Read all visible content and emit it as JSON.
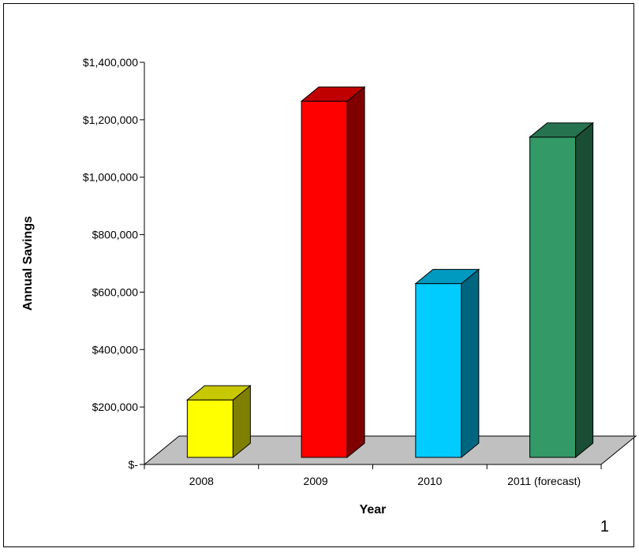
{
  "chart_data": {
    "type": "bar",
    "title": "",
    "xlabel": "Year",
    "ylabel": "Annual Savings",
    "categories": [
      "2008",
      "2009",
      "2010",
      "2011 (forecast)"
    ],
    "values": [
      200000,
      1240000,
      605000,
      1115000
    ],
    "ylim": [
      0,
      1400000
    ],
    "yticks": [
      {
        "value": 0,
        "label": "$-"
      },
      {
        "value": 200000,
        "label": "$200,000"
      },
      {
        "value": 400000,
        "label": "$400,000"
      },
      {
        "value": 600000,
        "label": "$600,000"
      },
      {
        "value": 800000,
        "label": "$800,000"
      },
      {
        "value": 1000000,
        "label": "$1,000,000"
      },
      {
        "value": 1200000,
        "label": "$1,200,000"
      },
      {
        "value": 1400000,
        "label": "$1,400,000"
      }
    ],
    "colors": [
      {
        "front": "#ffff00",
        "side": "#808000",
        "top": "#c8c800"
      },
      {
        "front": "#ff0000",
        "side": "#800000",
        "top": "#c00000"
      },
      {
        "front": "#00ccff",
        "side": "#006680",
        "top": "#0099c0"
      },
      {
        "front": "#339966",
        "side": "#1a4d33",
        "top": "#267350"
      }
    ],
    "floor_color": "#c0c0c0",
    "three_d": true,
    "grid": false,
    "legend": "none"
  },
  "page_number": "1"
}
